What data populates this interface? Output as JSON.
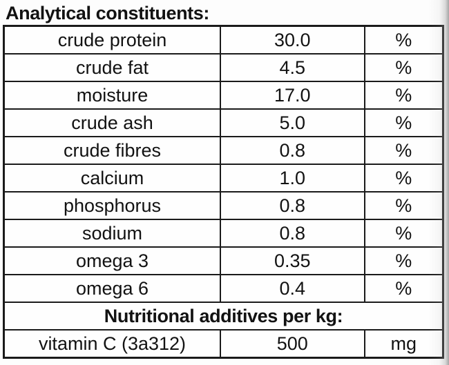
{
  "heading": {
    "text": "Analytical constituents:"
  },
  "table": {
    "rows": [
      {
        "name": "crude protein",
        "value": "30.0",
        "unit": "%"
      },
      {
        "name": "crude fat",
        "value": "4.5",
        "unit": "%"
      },
      {
        "name": "moisture",
        "value": "17.0",
        "unit": "%"
      },
      {
        "name": "crude ash",
        "value": "5.0",
        "unit": "%"
      },
      {
        "name": "crude fibres",
        "value": "0.8",
        "unit": "%"
      },
      {
        "name": "calcium",
        "value": "1.0",
        "unit": "%"
      },
      {
        "name": "phosphorus",
        "value": "0.8",
        "unit": "%"
      },
      {
        "name": "sodium",
        "value": "0.8",
        "unit": "%"
      },
      {
        "name": "omega 3",
        "value": "0.35",
        "unit": "%"
      },
      {
        "name": "omega 6",
        "value": "0.4",
        "unit": "%"
      }
    ],
    "section_header": "Nutritional additives per kg:",
    "additives": [
      {
        "name": "vitamin C (3a312)",
        "value": "500",
        "unit": "mg"
      }
    ]
  },
  "colors": {
    "border": "#1a1a1a",
    "text": "#121212",
    "edge_shadow": "#969696"
  }
}
